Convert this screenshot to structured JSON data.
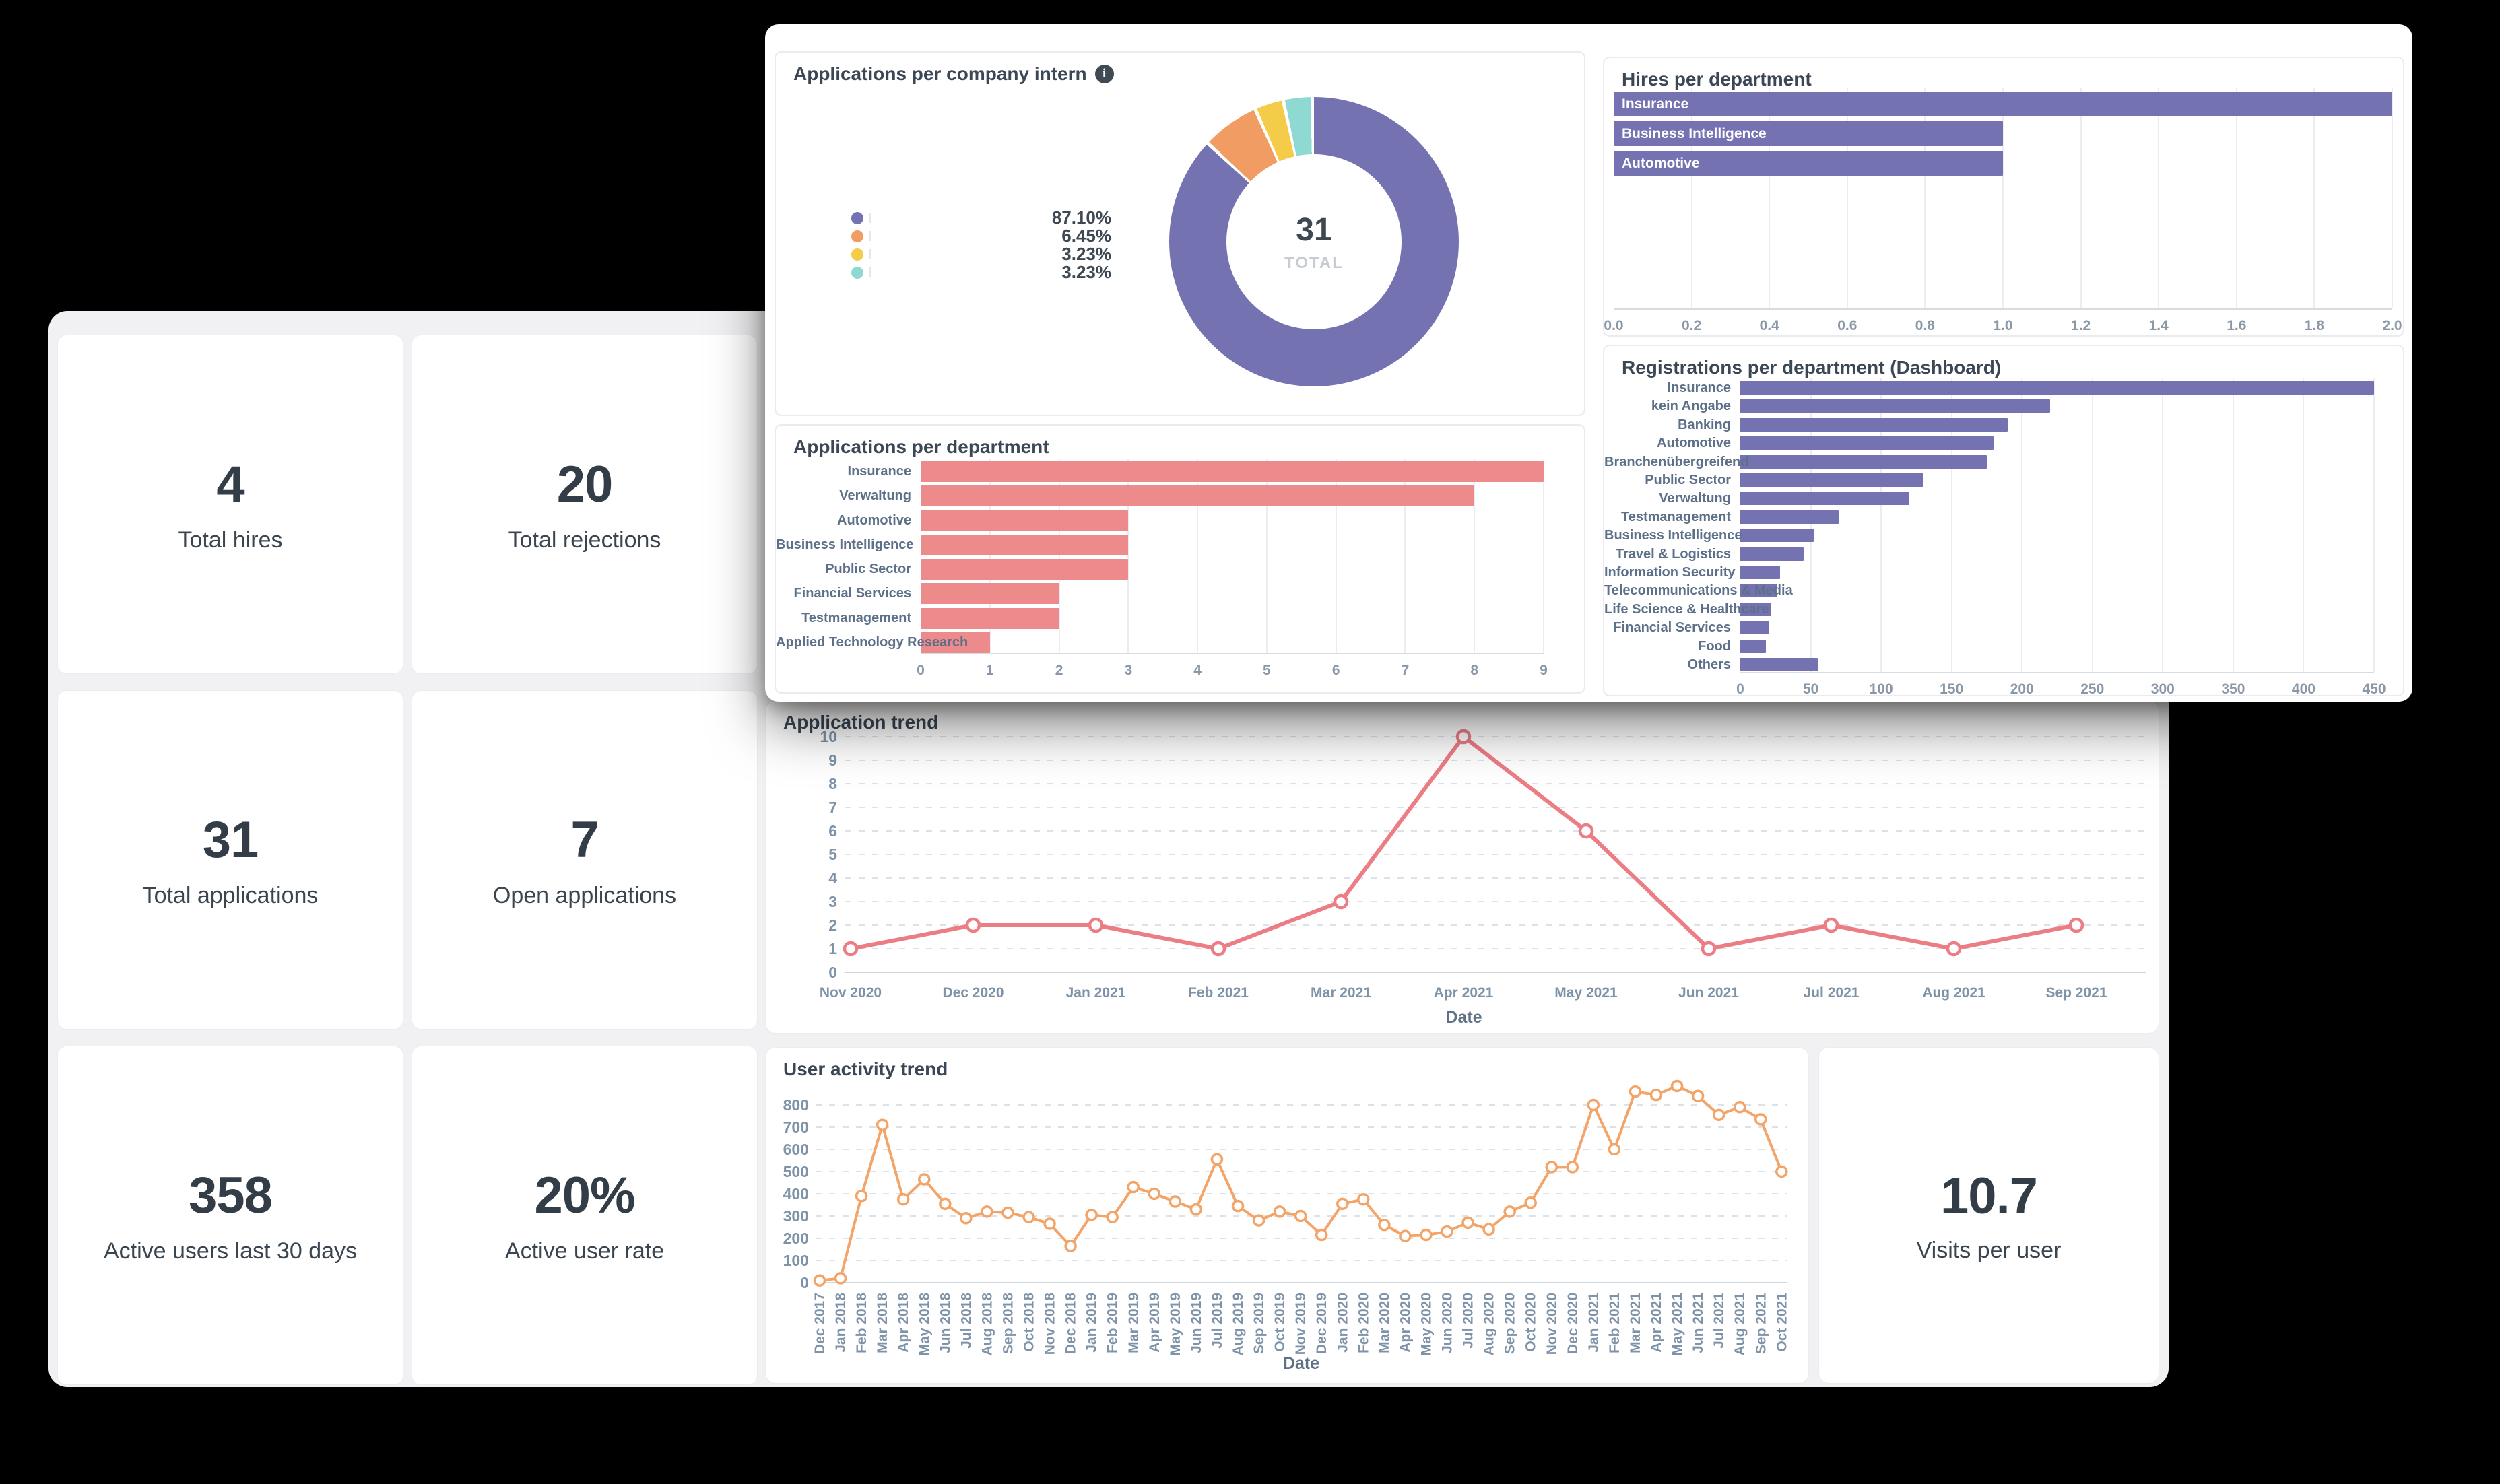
{
  "colors": {
    "purple": "#7572B1",
    "pink": "#ED8A8C",
    "salmon_line": "#EC7D84",
    "orange_line": "#F2A469",
    "yellow": "#F5CB4A",
    "teal": "#8EDAD2",
    "page_background": "#000000",
    "window_gray": "#F1F1F3",
    "card_white": "#FFFFFF",
    "text_dark": "#3B4754",
    "text_muted": "#7E93A8"
  },
  "stats": {
    "items": [
      {
        "value": "4",
        "label": "Total hires"
      },
      {
        "value": "20",
        "label": "Total rejections"
      },
      {
        "value": "31",
        "label": "Total applications"
      },
      {
        "value": "7",
        "label": "Open applications"
      },
      {
        "value": "358",
        "label": "Active users last 30 days"
      },
      {
        "value": "20%",
        "label": "Active user rate"
      }
    ]
  },
  "visits_card": {
    "value": "10.7",
    "label": "Visits per user"
  },
  "chart_data": [
    {
      "id": "donut",
      "type": "pie",
      "title": "Applications per company intern",
      "info_icon": "info-icon",
      "total": "31",
      "total_label": "TOTAL",
      "legend_position": "left",
      "slices": [
        {
          "label": "",
          "pct": 87.1,
          "color": "#7572B1"
        },
        {
          "label": "",
          "pct": 6.45,
          "color": "#F09C63"
        },
        {
          "label": "",
          "pct": 3.23,
          "color": "#F5CB4A"
        },
        {
          "label": "",
          "pct": 3.23,
          "color": "#8EDAD2"
        }
      ],
      "legend_values": [
        "87.10%",
        "6.45%",
        "3.23%",
        "3.23%"
      ]
    },
    {
      "id": "hires",
      "type": "bar",
      "orientation": "horizontal",
      "title": "Hires per department",
      "categories": [
        "Insurance",
        "Business Intelligence",
        "Automotive"
      ],
      "values": [
        2,
        1,
        1
      ],
      "xlim": [
        0,
        2
      ],
      "xticks": [
        "0.0",
        "0.2",
        "0.4",
        "0.6",
        "0.8",
        "1.0",
        "1.2",
        "1.4",
        "1.6",
        "1.8",
        "2.0"
      ],
      "grid": true,
      "bar_color": "#7572B1"
    },
    {
      "id": "registrations",
      "type": "bar",
      "orientation": "horizontal",
      "title": "Registrations per department (Dashboard)",
      "categories": [
        "Insurance",
        "kein Angabe",
        "Banking",
        "Automotive",
        "Branchenübergreifend",
        "Public Sector",
        "Verwaltung",
        "Testmanagement",
        "Business Intelligence",
        "Travel & Logistics",
        "Information Security",
        "Telecommunications & Media",
        "Life Science & Healthcare",
        "Financial Services",
        "Food",
        "Others"
      ],
      "values": [
        450,
        220,
        190,
        180,
        175,
        130,
        120,
        70,
        52,
        45,
        28,
        26,
        22,
        20,
        18,
        55
      ],
      "xlim": [
        0,
        450
      ],
      "xticks": [
        "0",
        "50",
        "100",
        "150",
        "200",
        "250",
        "300",
        "350",
        "400",
        "450"
      ],
      "grid": true,
      "bar_color": "#7572B1"
    },
    {
      "id": "applications_dept",
      "type": "bar",
      "orientation": "horizontal",
      "title": "Applications per department",
      "categories": [
        "Insurance",
        "Verwaltung",
        "Automotive",
        "Business Intelligence",
        "Public Sector",
        "Financial Services",
        "Testmanagement",
        "Applied Technology Research"
      ],
      "values": [
        9,
        8,
        3,
        3,
        3,
        2,
        2,
        1
      ],
      "xlim": [
        0,
        9
      ],
      "xticks": [
        "0",
        "1",
        "2",
        "3",
        "4",
        "5",
        "6",
        "7",
        "8",
        "9"
      ],
      "grid": true,
      "bar_color": "#ED8A8C"
    },
    {
      "id": "application_trend",
      "type": "line",
      "title": "Application trend",
      "xlabel": "Date",
      "x": [
        "Nov 2020",
        "Dec 2020",
        "Jan 2021",
        "Feb 2021",
        "Mar 2021",
        "Apr 2021",
        "May 2021",
        "Jun 2021",
        "Jul 2021",
        "Aug 2021",
        "Sep 2021"
      ],
      "values": [
        1,
        2,
        2,
        1,
        3,
        10,
        6,
        1,
        2,
        1,
        2
      ],
      "ylim": [
        0,
        10
      ],
      "yticks": [
        0,
        1,
        2,
        3,
        4,
        5,
        6,
        7,
        8,
        9,
        10
      ],
      "grid": "dashed",
      "line_color": "#EC7D84"
    },
    {
      "id": "user_activity_trend",
      "type": "line",
      "title": "User activity trend",
      "xlabel": "Date",
      "x": [
        "Dec 2017",
        "Jan 2018",
        "Feb 2018",
        "Mar 2018",
        "Apr 2018",
        "May 2018",
        "Jun 2018",
        "Jul 2018",
        "Aug 2018",
        "Sep 2018",
        "Oct 2018",
        "Nov 2018",
        "Dec 2018",
        "Jan 2019",
        "Feb 2019",
        "Mar 2019",
        "Apr 2019",
        "May 2019",
        "Jun 2019",
        "Jul 2019",
        "Aug 2019",
        "Sep 2019",
        "Oct 2019",
        "Nov 2019",
        "Dec 2019",
        "Jan 2020",
        "Feb 2020",
        "Mar 2020",
        "Apr 2020",
        "May 2020",
        "Jun 2020",
        "Jul 2020",
        "Aug 2020",
        "Sep 2020",
        "Oct 2020",
        "Nov 2020",
        "Dec 2020",
        "Jan 2021",
        "Feb 2021",
        "Mar 2021",
        "Apr 2021",
        "May 2021",
        "Jun 2021",
        "Jul 2021",
        "Aug 2021",
        "Sep 2021",
        "Oct 2021"
      ],
      "values": [
        10,
        20,
        390,
        710,
        375,
        465,
        355,
        290,
        320,
        315,
        295,
        265,
        165,
        305,
        295,
        430,
        400,
        365,
        330,
        555,
        345,
        280,
        320,
        300,
        215,
        355,
        375,
        260,
        210,
        215,
        230,
        270,
        240,
        320,
        360,
        520,
        520,
        800,
        600,
        860,
        845,
        885,
        840,
        755,
        790,
        735,
        500
      ],
      "ylim": [
        0,
        900
      ],
      "yticks": [
        0,
        100,
        200,
        300,
        400,
        500,
        600,
        700,
        800
      ],
      "grid": "dashed",
      "line_color": "#F2A469"
    }
  ]
}
